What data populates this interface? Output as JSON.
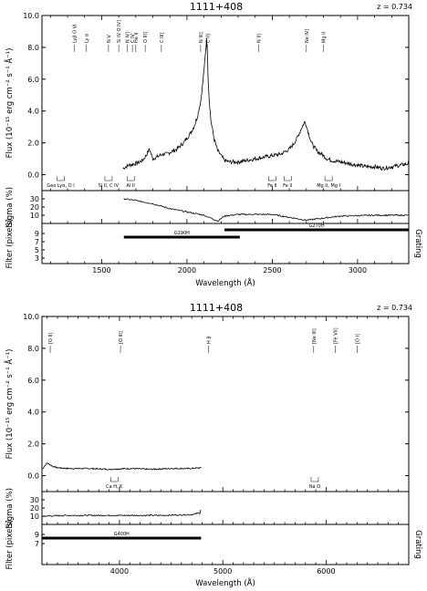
{
  "chart_data": [
    {
      "type": "line",
      "title": "1111+408",
      "redshift_label": "z = 0.734",
      "xlabel": "Wavelength (Å)",
      "xlim": [
        1150,
        3300
      ],
      "x_ticks": [
        1500,
        2000,
        2500,
        3000
      ],
      "flux": {
        "ylabel": "Flux (10⁻¹⁵ erg cm⁻² s⁻¹ Å⁻¹)",
        "ylim": [
          -1,
          10
        ],
        "y_ticks": [
          "0.0",
          "2.0",
          "4.0",
          "6.0",
          "8.0",
          "10.0"
        ],
        "series": [
          {
            "x": [
              1625,
              1640,
              1660,
              1680,
              1700,
              1720,
              1740,
              1760,
              1780,
              1800,
              1820,
              1840,
              1860,
              1880,
              1900,
              1920,
              1940,
              1960,
              1980,
              2000,
              2020,
              2040,
              2060,
              2080,
              2090,
              2100,
              2110,
              2115,
              2120,
              2125,
              2130,
              2140,
              2160,
              2180,
              2200,
              2220,
              2250,
              2300,
              2350,
              2400,
              2450,
              2500,
              2550,
              2600,
              2630,
              2650,
              2670,
              2690,
              2700,
              2710,
              2730,
              2760,
              2800,
              2820,
              2850,
              2900,
              2950,
              3000,
              3050,
              3100,
              3150,
              3200,
              3250,
              3300
            ],
            "y": [
              0.4,
              0.5,
              0.6,
              0.65,
              0.7,
              0.8,
              0.9,
              1.2,
              1.6,
              1.0,
              1.1,
              1.2,
              1.3,
              1.3,
              1.4,
              1.5,
              1.6,
              1.8,
              2.0,
              2.3,
              2.6,
              3.0,
              3.6,
              4.6,
              5.5,
              6.6,
              7.8,
              8.6,
              7.5,
              5.8,
              4.8,
              3.4,
              2.2,
              1.5,
              1.2,
              0.9,
              0.8,
              0.8,
              0.9,
              1.0,
              1.1,
              1.2,
              1.3,
              1.6,
              2.0,
              2.4,
              2.9,
              3.3,
              3.1,
              2.7,
              2.0,
              1.5,
              1.2,
              1.0,
              0.9,
              0.8,
              0.7,
              0.6,
              0.5,
              0.5,
              0.4,
              0.5,
              0.6,
              0.7
            ]
          }
        ],
        "emission_lines": [
          "Lyβ O VI",
          "Ly α",
          "N V",
          "Si IV O IV]",
          "N IV]",
          "C IV",
          "He II",
          "O III]",
          "C III]",
          "N III]",
          "C II]",
          "N II]",
          "Ne IV]",
          "Mg II"
        ],
        "absorption_lines": [
          "Geo Lyα, O I",
          "Si II, C IV",
          "Al II",
          "Fe II",
          "Fe II",
          "Mg II, Mg I"
        ]
      },
      "sigma": {
        "ylabel": "Sigma (%)",
        "ylim": [
          0,
          40
        ],
        "y_ticks": [
          "10",
          "20",
          "30"
        ],
        "x": [
          1630,
          1700,
          1800,
          1900,
          2000,
          2100,
          2180,
          2220,
          2300,
          2500,
          2700,
          2900,
          3100,
          3300
        ],
        "y": [
          30,
          28,
          24,
          18,
          14,
          10,
          3,
          9,
          11,
          11,
          4,
          9,
          10,
          10
        ]
      },
      "filter": {
        "ylabel": "Filter (pixels)",
        "right_label": "Grating",
        "y_ticks": [
          "3",
          "5",
          "7",
          "9"
        ],
        "gratings": [
          {
            "name": "G190H",
            "start": 1630,
            "end": 2310
          },
          {
            "name": "G270H",
            "start": 2220,
            "end": 3300
          }
        ]
      }
    },
    {
      "type": "line",
      "title": "1111+408",
      "redshift_label": "z = 0.734",
      "xlabel": "Wavelength (Å)",
      "xlim": [
        3250,
        6800
      ],
      "x_ticks": [
        4000,
        5000,
        6000
      ],
      "flux": {
        "ylabel": "Flux (10⁻¹⁵ erg cm⁻² s⁻¹ Å⁻¹)",
        "ylim": [
          -1,
          10
        ],
        "y_ticks": [
          "0.0",
          "2.0",
          "4.0",
          "6.0",
          "8.0",
          "10.0"
        ],
        "series": [
          {
            "x": [
              3250,
              3300,
              3350,
              3400,
              3500,
              3700,
              3900,
              4100,
              4300,
              4500,
              4700,
              4790
            ],
            "y": [
              0.4,
              0.8,
              0.6,
              0.5,
              0.45,
              0.45,
              0.4,
              0.45,
              0.4,
              0.45,
              0.45,
              0.5
            ]
          }
        ],
        "emission_lines": [
          "[O II]",
          "[O III]",
          "H β",
          "[Ne III]",
          "[Fe VII]",
          "[O I]"
        ],
        "absorption_lines": [
          "Ca H, K",
          "Na D"
        ]
      },
      "sigma": {
        "ylabel": "Sigma (%)",
        "ylim": [
          0,
          40
        ],
        "y_ticks": [
          "10",
          "20",
          "30"
        ],
        "x": [
          3250,
          3500,
          3800,
          4100,
          4400,
          4700,
          4780,
          4790
        ],
        "y": [
          10,
          11,
          11,
          11,
          11,
          12,
          14,
          22
        ]
      },
      "filter": {
        "ylabel": "Filter (pixels)",
        "right_label": "Grating",
        "y_ticks": [
          "7",
          "9"
        ],
        "gratings": [
          {
            "name": "G400H",
            "start": 3250,
            "end": 4790
          }
        ]
      }
    }
  ]
}
